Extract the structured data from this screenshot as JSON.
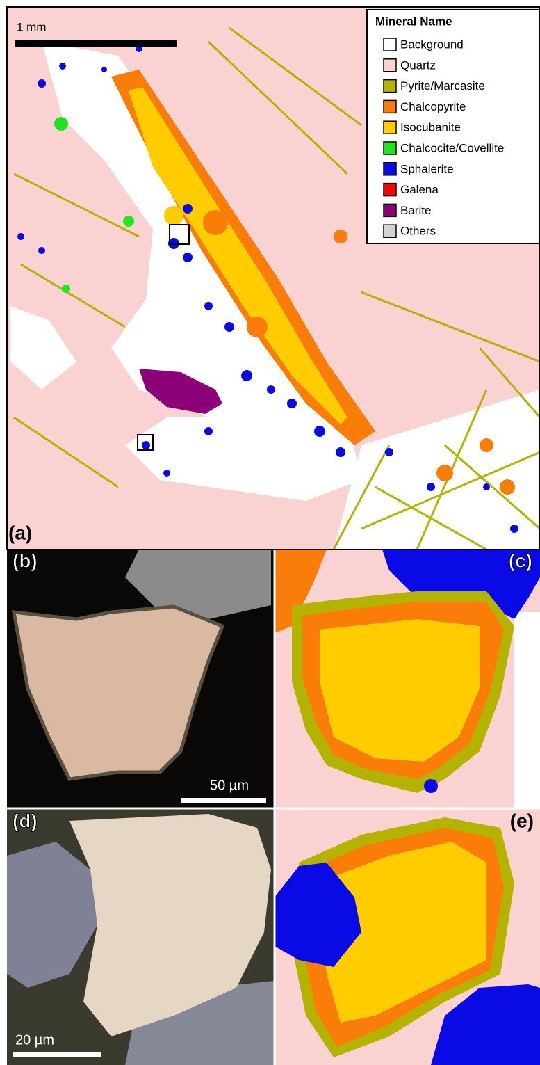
{
  "panels": [
    {
      "label": "(a)",
      "scale_bar": "1 mm"
    },
    {
      "label": "(b)",
      "scale_bar": "50 µm"
    },
    {
      "label": "(c)"
    },
    {
      "label": "(d)",
      "scale_bar": "20 µm"
    },
    {
      "label": "(e)"
    }
  ],
  "legend": {
    "title": "Mineral Name",
    "items": [
      {
        "name": "Background",
        "color": "#ffffff"
      },
      {
        "name": "Quartz",
        "color": "#fad2d2"
      },
      {
        "name": "Pyrite/Marcasite",
        "color": "#b4b400"
      },
      {
        "name": "Chalcopyrite",
        "color": "#fa7d0a"
      },
      {
        "name": "Isocubanite",
        "color": "#ffcc00"
      },
      {
        "name": "Chalcocite/Covellite",
        "color": "#1ee61e"
      },
      {
        "name": "Sphalerite",
        "color": "#0a0ae6"
      },
      {
        "name": "Galena",
        "color": "#ff0000"
      },
      {
        "name": "Barite",
        "color": "#8c0078"
      },
      {
        "name": "Others",
        "color": "#d2d2d2"
      }
    ]
  }
}
